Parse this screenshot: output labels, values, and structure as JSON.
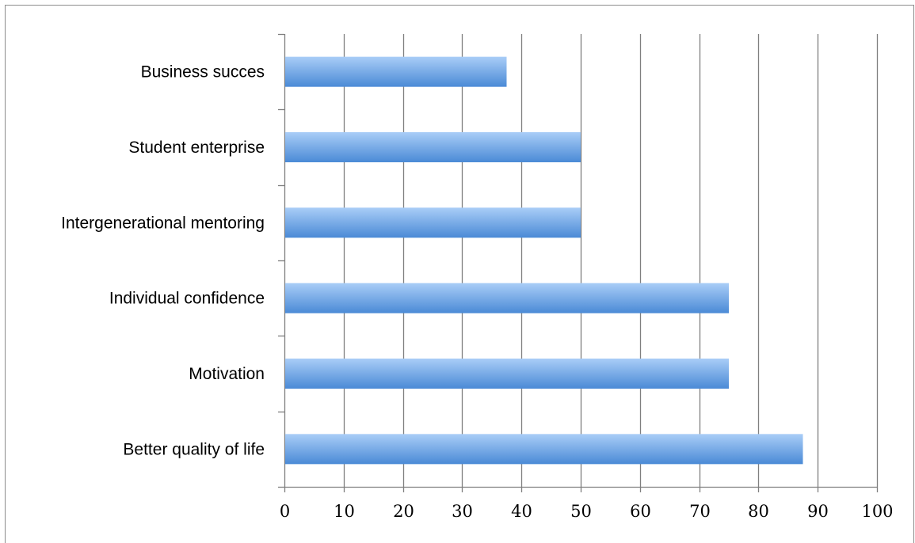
{
  "chart_data": {
    "type": "bar",
    "orientation": "horizontal",
    "categories": [
      "Better quality of life",
      "Motivation",
      "Individual confidence",
      "Intergenerational mentoring",
      "Student enterprise",
      "Business succes"
    ],
    "values": [
      87.5,
      75,
      75,
      50,
      50,
      37.5
    ],
    "title": "",
    "xlabel": "",
    "ylabel": "",
    "xlim": [
      0,
      100
    ],
    "x_ticks": [
      "0",
      "10",
      "20",
      "30",
      "40",
      "50",
      "60",
      "70",
      "80",
      "90",
      "100"
    ],
    "grid": true,
    "legend": "none",
    "bar_color_top": "#a9cdf7",
    "bar_color_bottom": "#4a8ad6",
    "gridline_color": "#7f7f7f"
  }
}
